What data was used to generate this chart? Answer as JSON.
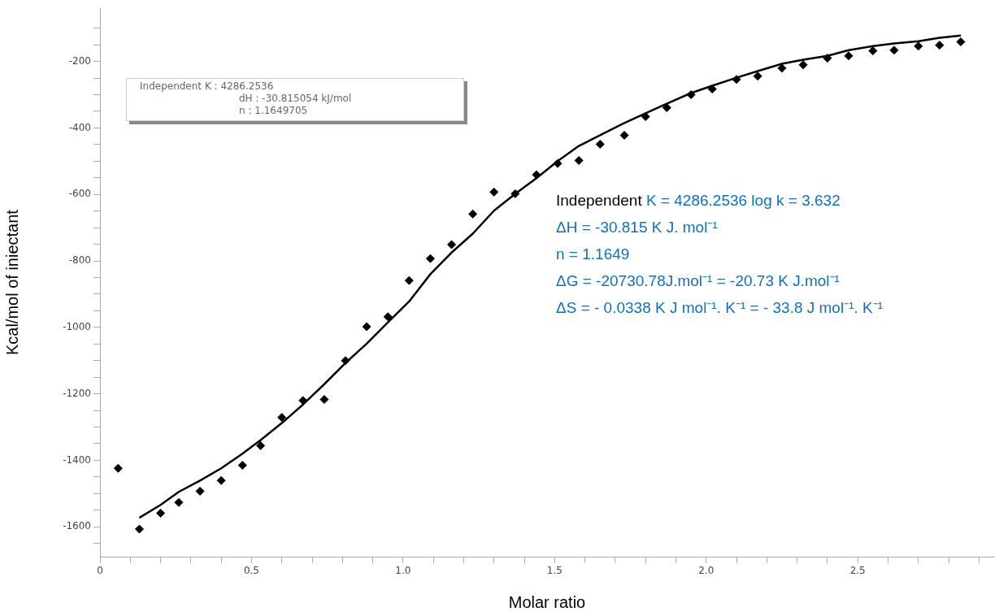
{
  "chart_data": {
    "type": "scatter",
    "xlabel": "Molar ratio",
    "ylabel": "Kcal/mol of iniectant",
    "xlim": [
      0,
      2.95
    ],
    "ylim": [
      -1690,
      -40
    ],
    "xticks": [
      0,
      {
        "value": 0.1,
        "label": null
      },
      {
        "value": 0.2,
        "label": null
      },
      {
        "value": 0.3,
        "label": null
      },
      {
        "value": 0.4,
        "label": null
      },
      0.5,
      {
        "value": 0.6,
        "label": null
      },
      {
        "value": 0.7,
        "label": null
      },
      {
        "value": 0.8,
        "label": null
      },
      {
        "value": 0.9,
        "label": null
      },
      {
        "value": 1,
        "label": "1.0"
      },
      {
        "value": 1.1,
        "label": null
      },
      {
        "value": 1.2,
        "label": null
      },
      {
        "value": 1.3,
        "label": null
      },
      {
        "value": 1.4,
        "label": null
      },
      1.5,
      {
        "value": 1.6,
        "label": null
      },
      {
        "value": 1.7,
        "label": null
      },
      {
        "value": 1.8,
        "label": null
      },
      {
        "value": 1.9,
        "label": null
      },
      {
        "value": 2,
        "label": "2.0"
      },
      {
        "value": 2.1,
        "label": null
      },
      {
        "value": 2.2,
        "label": null
      },
      {
        "value": 2.3,
        "label": null
      },
      {
        "value": 2.4,
        "label": null
      },
      2.5,
      {
        "value": 2.6,
        "label": null
      },
      {
        "value": 2.7,
        "label": null
      },
      {
        "value": 2.8,
        "label": null
      },
      {
        "value": 2.9,
        "label": null
      }
    ],
    "yticks": [
      {
        "value": -1650,
        "label": null
      },
      -1600,
      {
        "value": -1550,
        "label": null
      },
      {
        "value": -1500,
        "label": null
      },
      {
        "value": -1450,
        "label": null
      },
      -1400,
      {
        "value": -1350,
        "label": null
      },
      {
        "value": -1300,
        "label": null
      },
      {
        "value": -1250,
        "label": null
      },
      -1200,
      {
        "value": -1150,
        "label": null
      },
      {
        "value": -1100,
        "label": null
      },
      {
        "value": -1050,
        "label": null
      },
      -1000,
      {
        "value": -950,
        "label": null
      },
      {
        "value": -900,
        "label": null
      },
      {
        "value": -850,
        "label": null
      },
      -800,
      {
        "value": -750,
        "label": null
      },
      {
        "value": -700,
        "label": null
      },
      {
        "value": -650,
        "label": null
      },
      -600,
      {
        "value": -550,
        "label": null
      },
      {
        "value": -500,
        "label": null
      },
      {
        "value": -450,
        "label": null
      },
      -400,
      {
        "value": -350,
        "label": null
      },
      {
        "value": -300,
        "label": null
      },
      {
        "value": -250,
        "label": null
      },
      -200,
      {
        "value": -150,
        "label": null
      },
      {
        "value": -100,
        "label": null
      }
    ],
    "grid": false,
    "legend": false,
    "line_style": "solid",
    "series": [
      {
        "color": "#000000",
        "marker": "diamond",
        "x": [
          0.06,
          0.13,
          0.2,
          0.26,
          0.33,
          0.4,
          0.47,
          0.53,
          0.6,
          0.67,
          0.74,
          0.81,
          0.88,
          0.95,
          1.02,
          1.09,
          1.16,
          1.23,
          1.3,
          1.37,
          1.44,
          1.51,
          1.58,
          1.65,
          1.73,
          1.8,
          1.87,
          1.95,
          2.02,
          2.1,
          2.17,
          2.25,
          2.32,
          2.4,
          2.47,
          2.55,
          2.62,
          2.7,
          2.77,
          2.84
        ],
        "values": [
          -1424,
          -1607,
          -1559,
          -1527,
          -1493,
          -1461,
          -1415,
          -1356,
          -1271,
          -1220,
          -1217,
          -1100,
          -998,
          -968,
          -859,
          -793,
          -751,
          -659,
          -593,
          -598,
          -541,
          -507,
          -498,
          -449,
          -422,
          -366,
          -339,
          -300,
          -283,
          -254,
          -244,
          -220,
          -210,
          -190,
          -183,
          -168,
          -166,
          -154,
          -151,
          -141
        ]
      },
      {
        "type": "line",
        "color": "#000000",
        "marker": "none",
        "x": [
          0.13,
          0.2,
          0.26,
          0.33,
          0.4,
          0.47,
          0.53,
          0.6,
          0.67,
          0.74,
          0.81,
          0.88,
          0.95,
          1.02,
          1.09,
          1.16,
          1.23,
          1.3,
          1.37,
          1.44,
          1.51,
          1.58,
          1.65,
          1.73,
          1.8,
          1.87,
          1.95,
          2.02,
          2.1,
          2.17,
          2.25,
          2.32,
          2.4,
          2.47,
          2.55,
          2.62,
          2.7,
          2.77,
          2.84
        ],
        "values": [
          -1573,
          -1534,
          -1495,
          -1461,
          -1424,
          -1380,
          -1339,
          -1288,
          -1232,
          -1171,
          -1107,
          -1049,
          -985,
          -922,
          -840,
          -775,
          -718,
          -649,
          -598,
          -551,
          -500,
          -454,
          -422,
          -385,
          -356,
          -327,
          -295,
          -273,
          -249,
          -229,
          -207,
          -195,
          -183,
          -166,
          -154,
          -146,
          -139,
          -129,
          -122
        ]
      }
    ],
    "annotations": [
      "Independent K : 4286.2536",
      "dH : -30.815054 kJ/mol",
      "n : 1.1649705",
      "Independent K = 4286.2536 log k = 3.632",
      "ΔH = -30.815 K J. mol⁻¹",
      "n = 1.1649",
      "ΔG = -20730.78J.mol⁻¹ = -20.73 K J.mol⁻¹",
      "ΔS = - 0.0338 K J mol⁻¹. K⁻¹ = - 33.8 J mol⁻¹. K⁻¹"
    ]
  }
}
